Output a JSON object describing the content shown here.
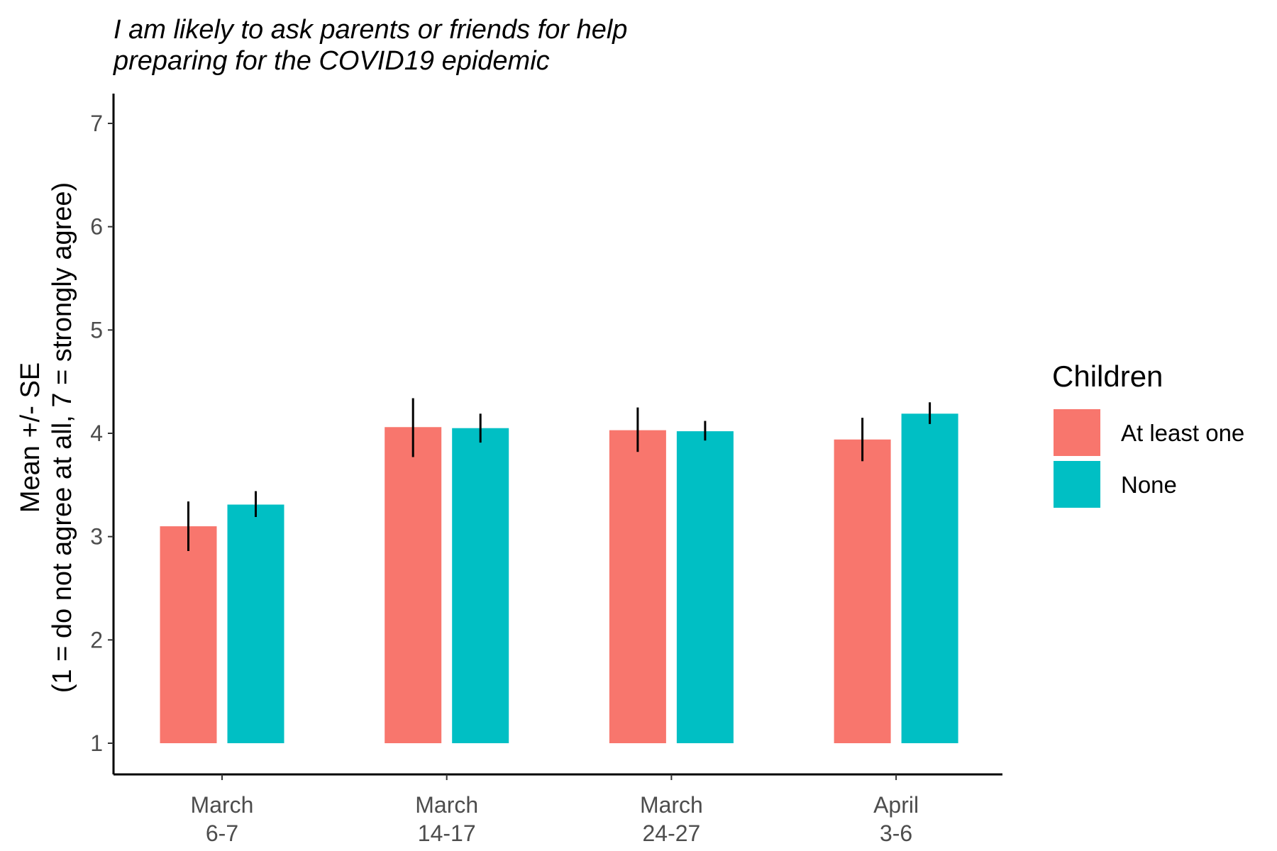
{
  "chart_data": {
    "type": "bar",
    "title_lines": [
      "I am likely to ask parents or friends for help",
      "preparing for the COVID19 epidemic"
    ],
    "ylabel_lines": [
      "Mean +/- SE",
      "(1 = do not agree at all, 7 = strongly agree)"
    ],
    "xlabel": "",
    "categories": [
      [
        "March",
        "6-7"
      ],
      [
        "March",
        "14-17"
      ],
      [
        "March",
        "24-27"
      ],
      [
        "April",
        "3-6"
      ]
    ],
    "ylim": [
      1,
      7
    ],
    "yticks": [
      1,
      2,
      3,
      4,
      5,
      6,
      7
    ],
    "bar_base": 1,
    "series": [
      {
        "name": "At least one",
        "color": "#F8766D",
        "values": [
          3.1,
          4.06,
          4.03,
          3.94
        ],
        "se_low": [
          2.86,
          3.77,
          3.82,
          3.73
        ],
        "se_high": [
          3.34,
          4.34,
          4.25,
          4.15
        ]
      },
      {
        "name": "None",
        "color": "#00BFC4",
        "values": [
          3.31,
          4.05,
          4.02,
          4.19
        ],
        "se_low": [
          3.19,
          3.91,
          3.93,
          4.09
        ],
        "se_high": [
          3.44,
          4.19,
          4.12,
          4.3
        ]
      }
    ],
    "legend": {
      "title": "Children",
      "placement": "right"
    },
    "grid": false,
    "error_bar_color": "#000000"
  }
}
